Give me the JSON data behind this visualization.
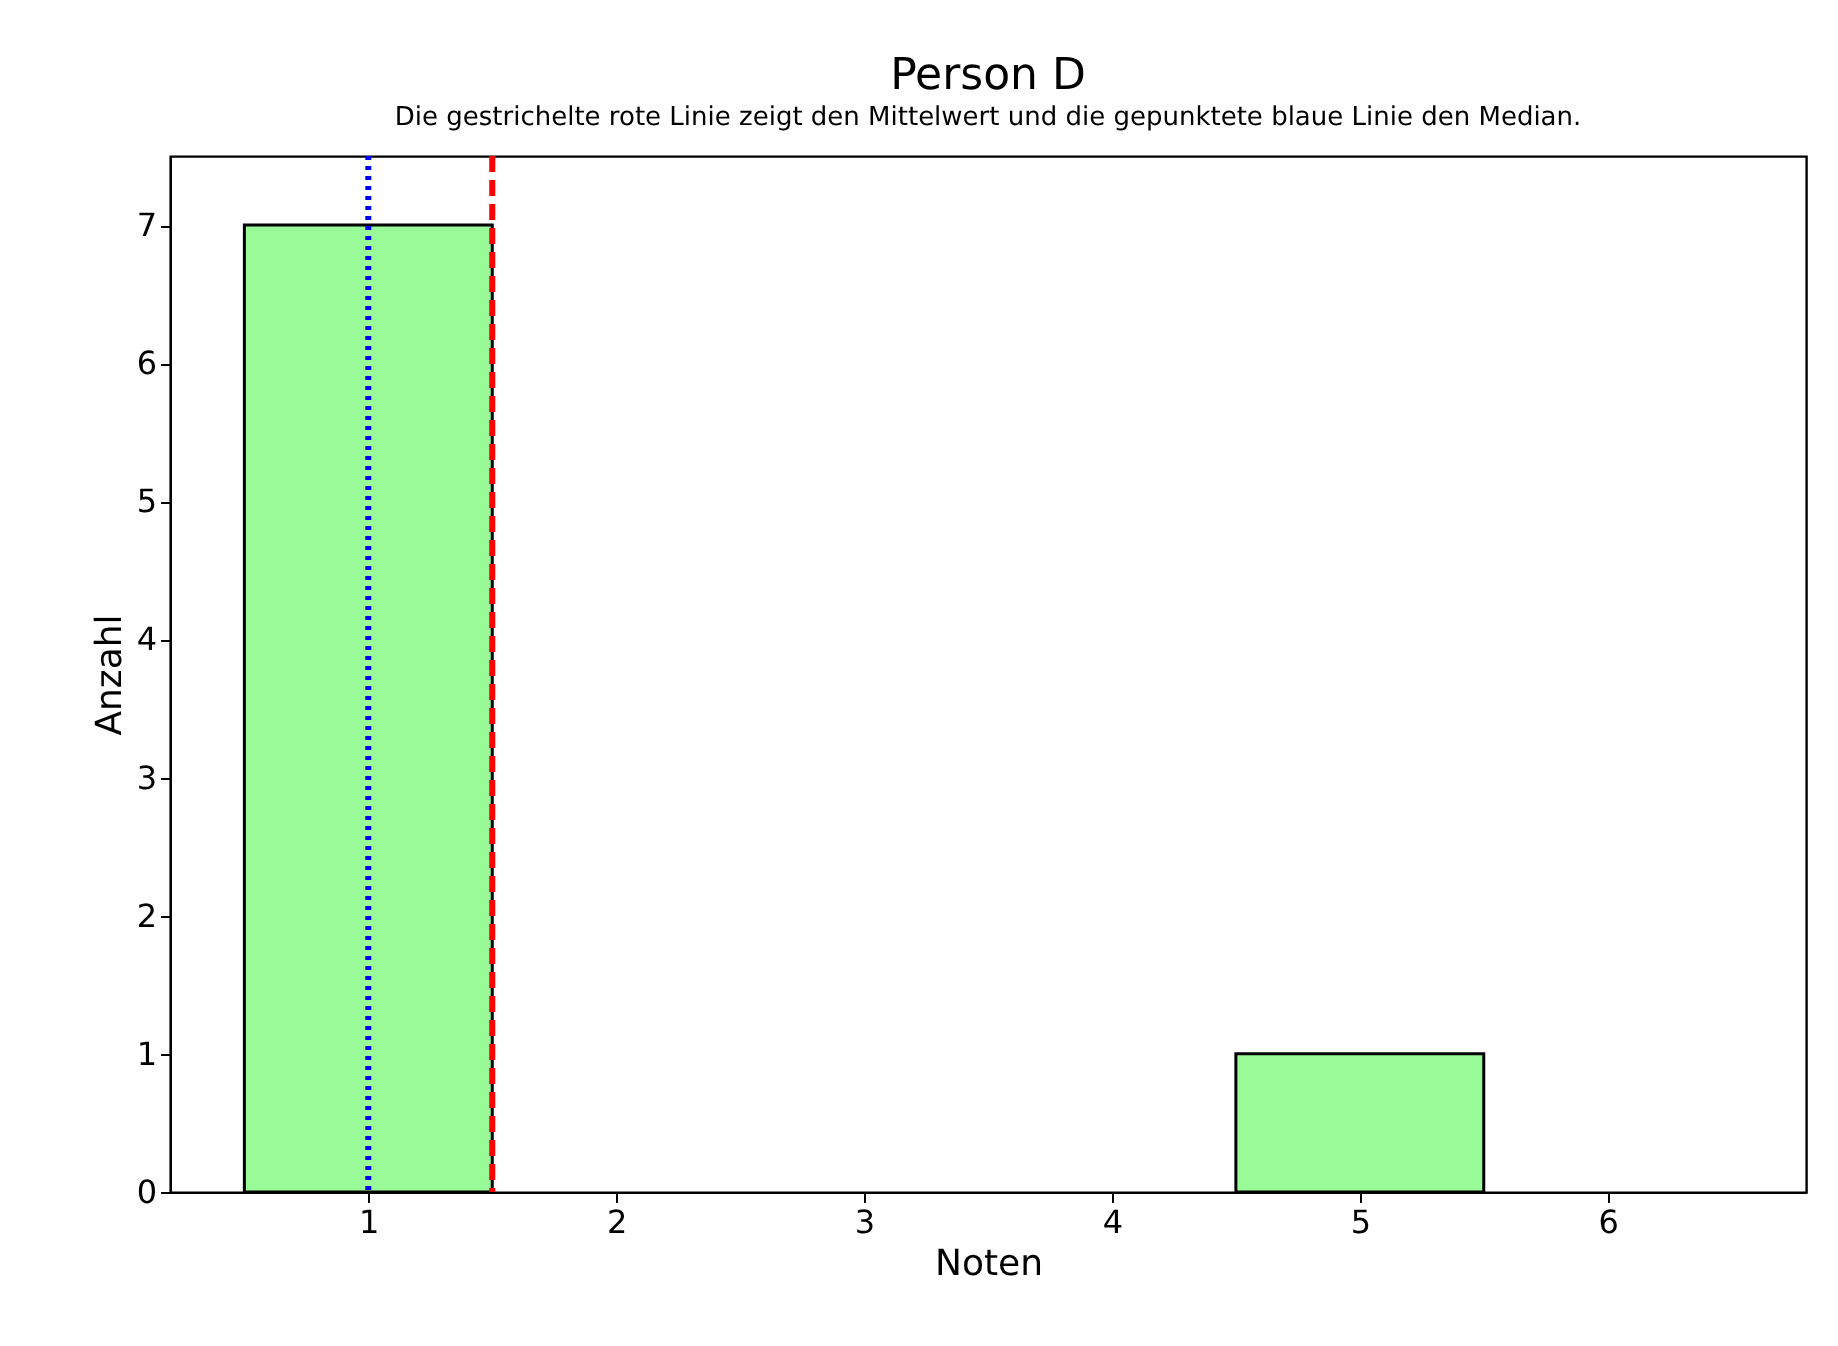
{
  "chart_data": {
    "type": "histogram",
    "title": "Person D",
    "subtitle": "Die gestrichelte rote Linie zeigt den Mittelwert und die gepunktete blaue Linie den Median.",
    "xlabel": "Noten",
    "ylabel": "Anzahl",
    "bins": [
      0.5,
      1.5,
      2.5,
      3.5,
      4.5,
      5.5,
      6.5
    ],
    "values": [
      7,
      0,
      0,
      0,
      1,
      0
    ],
    "color": "#98fb98",
    "xlim": [
      0.2,
      6.8
    ],
    "xticks": [
      1,
      2,
      3,
      4,
      5,
      6
    ],
    "ylim": [
      0,
      7.5
    ],
    "yticks": [
      0,
      1,
      2,
      3,
      4,
      5,
      6,
      7
    ],
    "ref_lines": [
      {
        "axis": "x",
        "value": 1.5,
        "color": "#ff0000",
        "line_style": "dashed"
      },
      {
        "axis": "x",
        "value": 1,
        "color": "#0000ff",
        "line_style": "dotted"
      }
    ]
  }
}
